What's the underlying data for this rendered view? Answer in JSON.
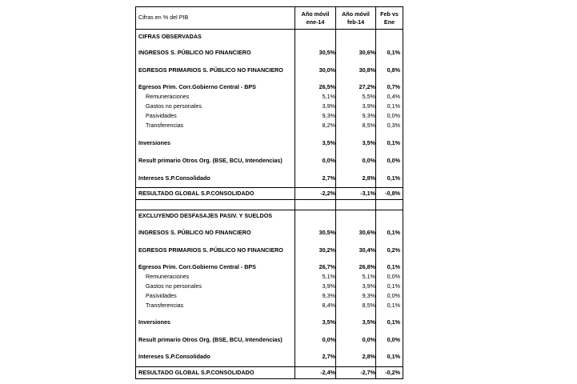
{
  "header": {
    "title": "Cifras en % del PIB",
    "col1_line1": "Año móvil",
    "col1_line2": "ene-14",
    "col2_line1": "Año móvil",
    "col2_line2": "feb-14",
    "col3_line1": "Feb vs",
    "col3_line2": "Ene"
  },
  "section1": {
    "title": "CIFRAS OBSERVADAS",
    "rows": [
      {
        "label": "INGRESOS  S. PÚBLICO NO FINANCIERO",
        "v1": "30,5%",
        "v2": "30,6%",
        "v3": "0,1%"
      },
      {
        "label": "EGRESOS PRIMARIOS S. PÚBLICO NO FINANCIERO",
        "v1": "30,0%",
        "v2": "30,8%",
        "v3": "0,8%"
      },
      {
        "label": "Egresos Prim. Corr.Gobierno Central - BPS",
        "v1": "26,5%",
        "v2": "27,2%",
        "v3": "0,7%"
      },
      {
        "label": "Remuneraciones",
        "v1": "5,1%",
        "v2": "5,5%",
        "v3": "0,4%"
      },
      {
        "label": "Gastos no personales",
        "v1": "3,9%",
        "v2": "3,9%",
        "v3": "0,1%"
      },
      {
        "label": "Pasividades",
        "v1": "9,3%",
        "v2": "9,3%",
        "v3": "0,0%"
      },
      {
        "label": "Transferencias",
        "v1": "8,2%",
        "v2": "8,5%",
        "v3": "0,3%"
      },
      {
        "label": "Inversiones",
        "v1": "3,5%",
        "v2": "3,5%",
        "v3": "0,1%"
      },
      {
        "label": "Result primario Otros Org. (BSE, BCU, Intendencias)",
        "v1": "0,0%",
        "v2": "0,0%",
        "v3": "0,0%"
      },
      {
        "label": "Intereses S.P.Consolidado",
        "v1": "2,7%",
        "v2": "2,8%",
        "v3": "0,1%"
      },
      {
        "label": "RESULTADO GLOBAL S.P.CONSOLIDADO",
        "v1": "-2,2%",
        "v2": "-3,1%",
        "v3": "-0,8%"
      }
    ]
  },
  "section2": {
    "title": "EXCLUYENDO DESFASAJES PASIV. Y SUELDOS",
    "rows": [
      {
        "label": "INGRESOS  S. PÚBLICO NO FINANCIERO",
        "v1": "30,5%",
        "v2": "30,6%",
        "v3": "0,1%"
      },
      {
        "label": "EGRESOS PRIMARIOS S. PÚBLICO NO FINANCIERO",
        "v1": "30,2%",
        "v2": "30,4%",
        "v3": "0,2%"
      },
      {
        "label": "Egresos Prim. Corr.Gobierno Central - BPS",
        "v1": "26,7%",
        "v2": "26,8%",
        "v3": "0,1%"
      },
      {
        "label": "Remuneraciones",
        "v1": "5,1%",
        "v2": "5,1%",
        "v3": "0,0%"
      },
      {
        "label": "Gastos no personales",
        "v1": "3,9%",
        "v2": "3,9%",
        "v3": "0,1%"
      },
      {
        "label": "Pasividades",
        "v1": "9,3%",
        "v2": "9,3%",
        "v3": "0,0%"
      },
      {
        "label": "Transferencias",
        "v1": "8,4%",
        "v2": "8,5%",
        "v3": "0,1%"
      },
      {
        "label": "Inversiones",
        "v1": "3,5%",
        "v2": "3,5%",
        "v3": "0,1%"
      },
      {
        "label": "Result primario Otros Org. (BSE, BCU, Intendencias)",
        "v1": "0,0%",
        "v2": "0,0%",
        "v3": "0,0%"
      },
      {
        "label": "Intereses S.P.Consolidado",
        "v1": "2,7%",
        "v2": "2,8%",
        "v3": "0,1%"
      },
      {
        "label": "RESULTADO GLOBAL S.P.CONSOLIDADO",
        "v1": "-2,4%",
        "v2": "-2,7%",
        "v3": "-0,2%"
      }
    ]
  }
}
